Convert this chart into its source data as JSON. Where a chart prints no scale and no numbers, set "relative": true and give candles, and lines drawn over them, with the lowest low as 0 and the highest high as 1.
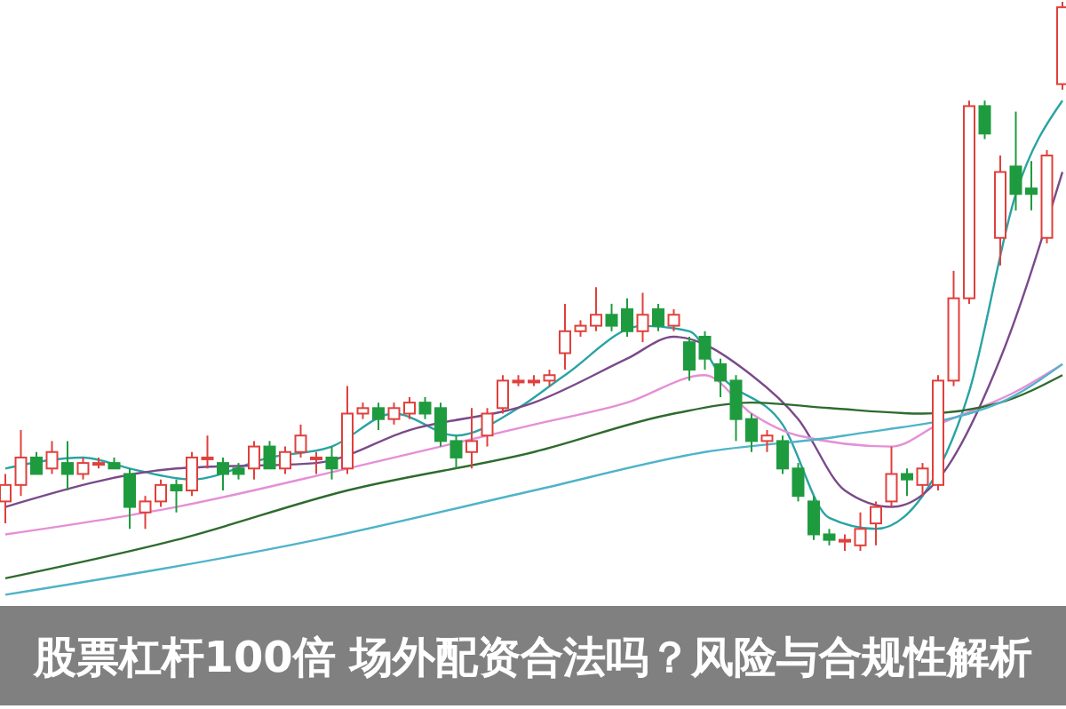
{
  "chart_data": {
    "type": "candlestick",
    "title": "股票杠杆100倍 场外配资合法吗？风险与合规性解析",
    "relative": true,
    "colors": [
      "#e0403c",
      "#e0403c",
      "#1f9b3f",
      "#e0403c",
      "#1f9b3f",
      "#e0403c",
      "#e0403c",
      "#1f9b3f",
      "#1f9b3f",
      "#e0403c",
      "#e0403c",
      "#1f9b3f",
      "#e0403c",
      "#e0403c",
      "#1f9b3f",
      "#1f9b3f",
      "#e0403c",
      "#1f9b3f",
      "#e0403c",
      "#e0403c",
      "#e0403c",
      "#1f9b3f",
      "#e0403c",
      "#e0403c",
      "#1f9b3f",
      "#e0403c",
      "#e0403c",
      "#1f9b3f",
      "#1f9b3f",
      "#1f9b3f",
      "#e0403c",
      "#e0403c",
      "#e0403c",
      "#e0403c",
      "#e0403c",
      "#e0403c",
      "#e0403c",
      "#e0403c",
      "#e0403c",
      "#1f9b3f",
      "#1f9b3f",
      "#e0403c",
      "#1f9b3f",
      "#e0403c",
      "#1f9b3f",
      "#1f9b3f",
      "#1f9b3f",
      "#1f9b3f",
      "#1f9b3f",
      "#e0403c",
      "#1f9b3f",
      "#1f9b3f",
      "#1f9b3f",
      "#1f9b3f",
      "#e0403c",
      "#e0403c",
      "#e0403c",
      "#e0403c",
      "#1f9b3f",
      "#e0403c",
      "#e0403c",
      "#e0403c",
      "#e0403c",
      "#1f9b3f",
      "#e0403c",
      "#1f9b3f",
      "#1f9b3f",
      "#e0403c",
      "#e0403c"
    ],
    "categories": [
      null,
      null,
      null,
      null,
      null,
      null,
      null,
      null,
      null,
      null,
      null,
      null,
      null,
      null,
      null,
      null,
      null,
      null,
      null,
      null,
      null,
      null,
      null,
      null,
      null,
      null,
      null,
      null,
      null,
      null,
      null,
      null,
      null,
      null,
      null,
      null,
      null,
      null,
      null,
      null,
      null,
      null,
      null,
      null,
      null,
      null,
      null,
      null,
      null,
      null,
      null,
      null,
      null,
      null,
      null,
      null,
      null,
      null,
      null,
      null,
      null,
      null,
      null,
      null,
      null,
      null,
      null,
      null,
      null
    ],
    "ohlc": [
      [
        0.09,
        0.14,
        0.05,
        0.12
      ],
      [
        0.12,
        0.22,
        0.1,
        0.17
      ],
      [
        0.17,
        0.18,
        0.14,
        0.14
      ],
      [
        0.15,
        0.2,
        0.14,
        0.18
      ],
      [
        0.16,
        0.2,
        0.11,
        0.14
      ],
      [
        0.14,
        0.17,
        0.13,
        0.16
      ],
      [
        0.16,
        0.17,
        0.15,
        0.16
      ],
      [
        0.16,
        0.17,
        0.15,
        0.15
      ],
      [
        0.14,
        0.15,
        0.04,
        0.08
      ],
      [
        0.07,
        0.1,
        0.04,
        0.09
      ],
      [
        0.09,
        0.13,
        0.08,
        0.12
      ],
      [
        0.12,
        0.13,
        0.07,
        0.11
      ],
      [
        0.11,
        0.18,
        0.1,
        0.17
      ],
      [
        0.17,
        0.21,
        0.15,
        0.17
      ],
      [
        0.16,
        0.17,
        0.11,
        0.14
      ],
      [
        0.15,
        0.16,
        0.13,
        0.14
      ],
      [
        0.15,
        0.2,
        0.13,
        0.19
      ],
      [
        0.19,
        0.2,
        0.15,
        0.15
      ],
      [
        0.15,
        0.19,
        0.14,
        0.18
      ],
      [
        0.18,
        0.23,
        0.17,
        0.21
      ],
      [
        0.17,
        0.18,
        0.14,
        0.17
      ],
      [
        0.17,
        0.19,
        0.13,
        0.15
      ],
      [
        0.15,
        0.3,
        0.14,
        0.25
      ],
      [
        0.25,
        0.27,
        0.24,
        0.26
      ],
      [
        0.26,
        0.27,
        0.22,
        0.24
      ],
      [
        0.24,
        0.27,
        0.23,
        0.26
      ],
      [
        0.25,
        0.28,
        0.24,
        0.27
      ],
      [
        0.27,
        0.28,
        0.24,
        0.25
      ],
      [
        0.26,
        0.27,
        0.19,
        0.2
      ],
      [
        0.2,
        0.21,
        0.15,
        0.17
      ],
      [
        0.18,
        0.26,
        0.15,
        0.2
      ],
      [
        0.21,
        0.26,
        0.19,
        0.25
      ],
      [
        0.26,
        0.32,
        0.25,
        0.31
      ],
      [
        0.31,
        0.32,
        0.3,
        0.31
      ],
      [
        0.31,
        0.32,
        0.3,
        0.31
      ],
      [
        0.31,
        0.33,
        0.3,
        0.32
      ],
      [
        0.36,
        0.45,
        0.33,
        0.4
      ],
      [
        0.4,
        0.42,
        0.39,
        0.41
      ],
      [
        0.41,
        0.48,
        0.4,
        0.43
      ],
      [
        0.43,
        0.45,
        0.4,
        0.41
      ],
      [
        0.44,
        0.46,
        0.39,
        0.4
      ],
      [
        0.4,
        0.47,
        0.38,
        0.43
      ],
      [
        0.44,
        0.45,
        0.4,
        0.41
      ],
      [
        0.41,
        0.44,
        0.4,
        0.43
      ],
      [
        0.38,
        0.39,
        0.31,
        0.33
      ],
      [
        0.39,
        0.4,
        0.33,
        0.35
      ],
      [
        0.34,
        0.35,
        0.28,
        0.31
      ],
      [
        0.31,
        0.32,
        0.2,
        0.24
      ],
      [
        0.24,
        0.25,
        0.18,
        0.2
      ],
      [
        0.2,
        0.22,
        0.18,
        0.21
      ],
      [
        0.2,
        0.21,
        0.14,
        0.15
      ],
      [
        0.15,
        0.16,
        0.09,
        0.1
      ],
      [
        0.09,
        0.1,
        0.02,
        0.03
      ],
      [
        0.03,
        0.04,
        0.01,
        0.02
      ],
      [
        0.02,
        0.03,
        0.0,
        0.02
      ],
      [
        0.01,
        0.07,
        0.0,
        0.04
      ],
      [
        0.05,
        0.09,
        0.01,
        0.08
      ],
      [
        0.09,
        0.19,
        0.08,
        0.14
      ],
      [
        0.14,
        0.15,
        0.1,
        0.13
      ],
      [
        0.12,
        0.16,
        0.1,
        0.15
      ],
      [
        0.12,
        0.32,
        0.11,
        0.31
      ],
      [
        0.31,
        0.51,
        0.3,
        0.46
      ],
      [
        0.46,
        0.82,
        0.45,
        0.81
      ],
      [
        0.81,
        0.82,
        0.75,
        0.76
      ],
      [
        0.57,
        0.72,
        0.52,
        0.69
      ],
      [
        0.7,
        0.8,
        0.62,
        0.65
      ],
      [
        0.66,
        0.71,
        0.62,
        0.65
      ],
      [
        0.57,
        0.73,
        0.56,
        0.72
      ],
      [
        0.85,
        1,
        0.84,
        0.99
      ]
    ],
    "series": [
      {
        "type": "line",
        "color": "#2aa3a3",
        "values": [
          0.15,
          null,
          null,
          null,
          null,
          0.17,
          null,
          null,
          0.15,
          null,
          null,
          null,
          0.13,
          null,
          null,
          null,
          null,
          0.17,
          null,
          null,
          null,
          0.19,
          null,
          null,
          null,
          0.25,
          null,
          null,
          null,
          0.21,
          null,
          null,
          null,
          0.26,
          null,
          null,
          0.32,
          null,
          null,
          null,
          null,
          0.41,
          null,
          null,
          0.4,
          null,
          0.32,
          null,
          null,
          null,
          0.23,
          null,
          null,
          0.06,
          null,
          null,
          0.04,
          null,
          null,
          0.1,
          null,
          null,
          0.29,
          null,
          null,
          0.65,
          null,
          null,
          0.82
        ]
      },
      {
        "type": "line",
        "color": "#7a4a8a",
        "values": [
          0.08,
          null,
          null,
          null,
          null,
          null,
          null,
          null,
          null,
          null,
          null,
          0.15,
          null,
          null,
          null,
          null,
          null,
          null,
          null,
          null,
          0.16,
          null,
          null,
          null,
          null,
          null,
          0.22,
          null,
          null,
          null,
          null,
          null,
          null,
          null,
          0.27,
          null,
          null,
          null,
          null,
          null,
          0.35,
          null,
          null,
          0.39,
          null,
          null,
          null,
          null,
          0.32,
          null,
          null,
          0.24,
          null,
          null,
          0.11,
          null,
          null,
          0.08,
          null,
          null,
          0.13,
          null,
          null,
          null,
          0.35,
          null,
          null,
          null,
          0.69
        ]
      },
      {
        "type": "line",
        "color": "#e58fd6",
        "values": [
          0.03,
          null,
          null,
          null,
          null,
          null,
          null,
          null,
          null,
          null,
          null,
          0.08,
          null,
          null,
          null,
          null,
          null,
          null,
          null,
          null,
          null,
          null,
          0.15,
          null,
          null,
          null,
          null,
          null,
          0.19,
          null,
          null,
          null,
          null,
          null,
          0.23,
          null,
          null,
          null,
          null,
          null,
          0.27,
          null,
          null,
          null,
          null,
          0.32,
          null,
          null,
          0.25,
          null,
          null,
          0.21,
          null,
          null,
          null,
          null,
          null,
          0.19,
          null,
          null,
          0.23,
          null,
          null,
          null,
          null,
          0.29,
          null,
          null,
          0.34
        ]
      },
      {
        "type": "line",
        "color": "#2e6b2e",
        "values": [
          -0.05,
          null,
          null,
          null,
          null,
          null,
          null,
          null,
          null,
          null,
          null,
          0.02,
          null,
          null,
          null,
          null,
          null,
          null,
          null,
          null,
          null,
          null,
          0.11,
          null,
          null,
          null,
          null,
          null,
          null,
          null,
          null,
          null,
          null,
          null,
          0.18,
          null,
          null,
          null,
          null,
          null,
          null,
          null,
          null,
          0.25,
          null,
          null,
          null,
          null,
          0.27,
          null,
          null,
          null,
          null,
          0.26,
          null,
          null,
          null,
          null,
          null,
          0.25,
          null,
          null,
          null,
          null,
          0.27,
          null,
          null,
          null,
          0.32
        ]
      },
      {
        "type": "line",
        "color": "#4fb3c9",
        "values": [
          -0.08,
          null,
          null,
          null,
          null,
          null,
          null,
          null,
          null,
          null,
          null,
          null,
          null,
          null,
          null,
          null,
          null,
          null,
          null,
          null,
          0.02,
          null,
          null,
          null,
          null,
          null,
          null,
          null,
          null,
          null,
          null,
          null,
          null,
          null,
          0.11,
          null,
          null,
          null,
          null,
          null,
          null,
          null,
          null,
          null,
          null,
          0.18,
          null,
          null,
          null,
          null,
          null,
          null,
          null,
          null,
          0.21,
          null,
          null,
          null,
          null,
          null,
          null,
          null,
          null,
          null,
          0.27,
          null,
          null,
          null,
          0.34
        ]
      }
    ]
  }
}
